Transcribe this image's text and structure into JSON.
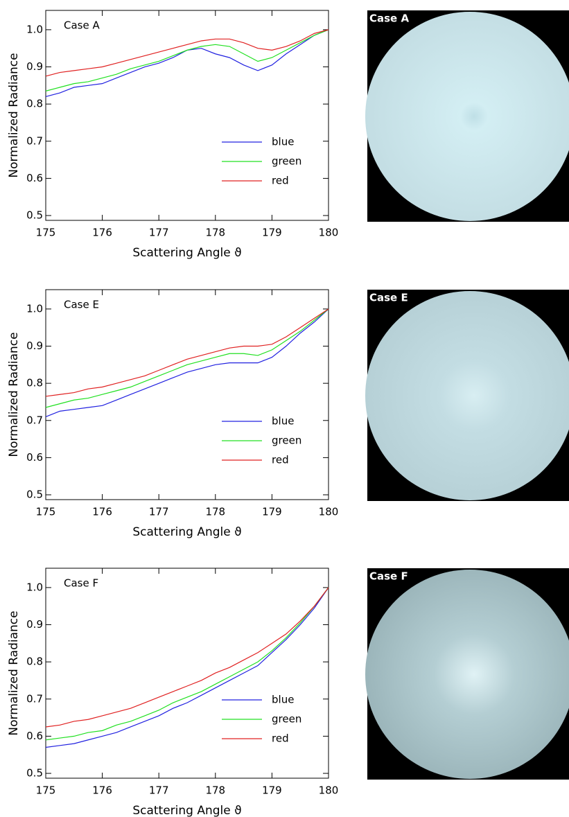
{
  "chart_data": [
    {
      "type": "line",
      "annotation": "Case A",
      "xlabel": "Scattering Angle  ϑ",
      "ylabel": "Normalized Radiance",
      "x": [
        175,
        175.25,
        175.5,
        175.75,
        176,
        176.25,
        176.5,
        176.75,
        177,
        177.25,
        177.5,
        177.75,
        178,
        178.25,
        178.5,
        178.75,
        179,
        179.25,
        179.5,
        179.75,
        180
      ],
      "series": [
        {
          "name": "blue",
          "color": "#2020e0",
          "values": [
            0.82,
            0.83,
            0.845,
            0.85,
            0.855,
            0.87,
            0.885,
            0.9,
            0.91,
            0.925,
            0.945,
            0.95,
            0.935,
            0.925,
            0.905,
            0.89,
            0.905,
            0.935,
            0.96,
            0.985,
            1.0
          ]
        },
        {
          "name": "green",
          "color": "#20e020",
          "values": [
            0.835,
            0.845,
            0.855,
            0.86,
            0.87,
            0.88,
            0.895,
            0.905,
            0.915,
            0.93,
            0.945,
            0.955,
            0.96,
            0.955,
            0.935,
            0.915,
            0.925,
            0.945,
            0.965,
            0.985,
            1.0
          ]
        },
        {
          "name": "red",
          "color": "#e02020",
          "values": [
            0.875,
            0.885,
            0.89,
            0.895,
            0.9,
            0.91,
            0.92,
            0.93,
            0.94,
            0.95,
            0.96,
            0.97,
            0.975,
            0.975,
            0.965,
            0.95,
            0.945,
            0.955,
            0.97,
            0.99,
            1.0
          ]
        }
      ],
      "xlim": [
        175,
        180
      ],
      "xticks": [
        175,
        176,
        177,
        178,
        179,
        180
      ],
      "ylim": [
        0.487,
        1.052
      ],
      "yticks": [
        0.5,
        0.6,
        0.7,
        0.8,
        0.9,
        {
          "value": 1,
          "label": "1.0"
        }
      ],
      "legend": "lower right"
    },
    {
      "type": "line",
      "annotation": "Case E",
      "xlabel": "Scattering Angle  ϑ",
      "ylabel": "Normalized Radiance",
      "x": [
        175,
        175.25,
        175.5,
        175.75,
        176,
        176.25,
        176.5,
        176.75,
        177,
        177.25,
        177.5,
        177.75,
        178,
        178.25,
        178.5,
        178.75,
        179,
        179.25,
        179.5,
        179.75,
        180
      ],
      "series": [
        {
          "name": "blue",
          "color": "#2020e0",
          "values": [
            0.71,
            0.725,
            0.73,
            0.735,
            0.74,
            0.755,
            0.77,
            0.785,
            0.8,
            0.815,
            0.83,
            0.84,
            0.85,
            0.855,
            0.855,
            0.855,
            0.87,
            0.9,
            0.935,
            0.965,
            1.0
          ]
        },
        {
          "name": "green",
          "color": "#20e020",
          "values": [
            0.735,
            0.745,
            0.755,
            0.76,
            0.77,
            0.78,
            0.79,
            0.805,
            0.82,
            0.835,
            0.85,
            0.86,
            0.87,
            0.88,
            0.88,
            0.875,
            0.89,
            0.915,
            0.94,
            0.97,
            1.0
          ]
        },
        {
          "name": "red",
          "color": "#e02020",
          "values": [
            0.765,
            0.77,
            0.775,
            0.785,
            0.79,
            0.8,
            0.81,
            0.82,
            0.835,
            0.85,
            0.865,
            0.875,
            0.885,
            0.895,
            0.9,
            0.9,
            0.905,
            0.925,
            0.95,
            0.975,
            1.0
          ]
        }
      ],
      "xlim": [
        175,
        180
      ],
      "xticks": [
        175,
        176,
        177,
        178,
        179,
        180
      ],
      "ylim": [
        0.487,
        1.052
      ],
      "yticks": [
        0.5,
        0.6,
        0.7,
        0.8,
        0.9,
        {
          "value": 1,
          "label": "1.0"
        }
      ],
      "legend": "lower right"
    },
    {
      "type": "line",
      "annotation": "Case F",
      "xlabel": "Scattering Angle  ϑ",
      "ylabel": "Normalized Radiance",
      "x": [
        175,
        175.25,
        175.5,
        175.75,
        176,
        176.25,
        176.5,
        176.75,
        177,
        177.25,
        177.5,
        177.75,
        178,
        178.25,
        178.5,
        178.75,
        179,
        179.25,
        179.5,
        179.75,
        180
      ],
      "series": [
        {
          "name": "blue",
          "color": "#2020e0",
          "values": [
            0.57,
            0.575,
            0.58,
            0.59,
            0.6,
            0.61,
            0.625,
            0.64,
            0.655,
            0.675,
            0.69,
            0.71,
            0.73,
            0.75,
            0.77,
            0.79,
            0.825,
            0.86,
            0.9,
            0.945,
            1.0
          ]
        },
        {
          "name": "green",
          "color": "#20e020",
          "values": [
            0.59,
            0.595,
            0.6,
            0.61,
            0.615,
            0.63,
            0.64,
            0.655,
            0.67,
            0.69,
            0.705,
            0.72,
            0.74,
            0.76,
            0.78,
            0.8,
            0.83,
            0.865,
            0.905,
            0.95,
            1.0
          ]
        },
        {
          "name": "red",
          "color": "#e02020",
          "values": [
            0.625,
            0.63,
            0.64,
            0.645,
            0.655,
            0.665,
            0.675,
            0.69,
            0.705,
            0.72,
            0.735,
            0.75,
            0.77,
            0.785,
            0.805,
            0.825,
            0.85,
            0.875,
            0.91,
            0.95,
            1.0
          ]
        }
      ],
      "xlim": [
        175,
        180
      ],
      "xticks": [
        175,
        176,
        177,
        178,
        179,
        180
      ],
      "ylim": [
        0.487,
        1.052
      ],
      "yticks": [
        0.5,
        0.6,
        0.7,
        0.8,
        0.9,
        {
          "value": 1,
          "label": "1.0"
        }
      ],
      "legend": "lower right"
    }
  ],
  "images": [
    {
      "label": "Case A"
    },
    {
      "label": "Case E"
    },
    {
      "label": "Case F"
    }
  ]
}
